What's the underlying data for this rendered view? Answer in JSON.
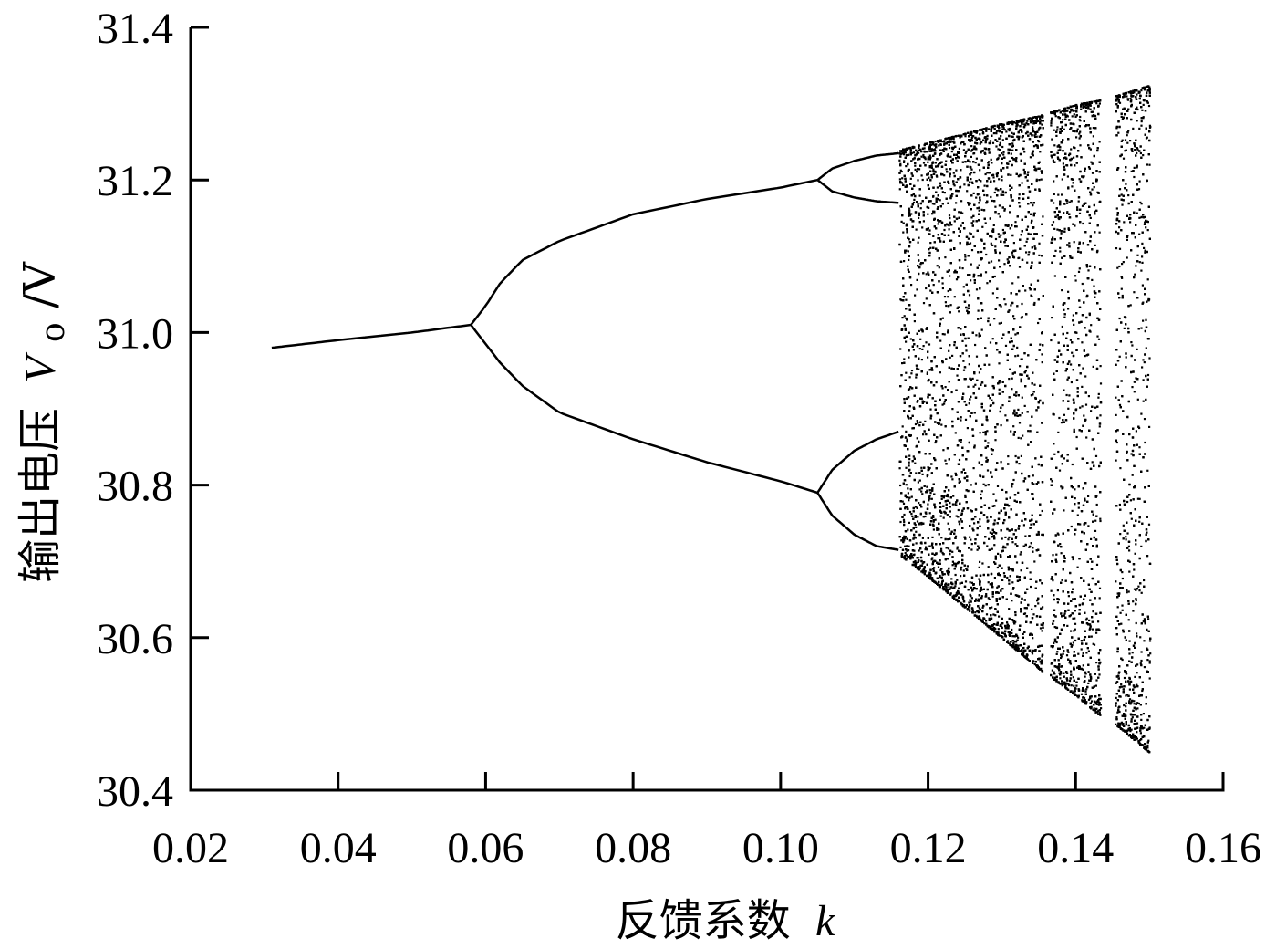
{
  "chart_data": {
    "type": "scatter",
    "title": "",
    "xlabel": "反馈系数",
    "xlabel_symbol": "k",
    "ylabel": "输出电压",
    "ylabel_symbol": "V",
    "ylabel_subscript": "o",
    "ylabel_unit": "/V",
    "xlim": [
      0.02,
      0.16
    ],
    "ylim": [
      30.4,
      31.4
    ],
    "x_ticks": [
      0.02,
      0.04,
      0.06,
      0.08,
      0.1,
      0.12,
      0.14,
      0.16
    ],
    "x_tick_labels": [
      "0.02",
      "0.04",
      "0.06",
      "0.08",
      "0.10",
      "0.12",
      "0.14",
      "0.16"
    ],
    "y_ticks": [
      30.4,
      30.6,
      30.8,
      31.0,
      31.2,
      31.4
    ],
    "y_tick_labels": [
      "30.4",
      "30.6",
      "30.8",
      "31.0",
      "31.2",
      "31.4"
    ],
    "grid": false,
    "legend": "none",
    "marker_color": "#000000",
    "series": [
      {
        "branches": [
          {
            "x": [
              0.031,
              0.04,
              0.05,
              0.058
            ],
            "y": [
              30.98,
              30.99,
              31.0,
              31.01
            ]
          },
          {
            "x": [
              0.058,
              0.06,
              0.062,
              0.065,
              0.07,
              0.08,
              0.09,
              0.1,
              0.105
            ],
            "y": [
              31.01,
              31.035,
              31.065,
              31.095,
              31.12,
              31.155,
              31.175,
              31.19,
              31.2
            ]
          },
          {
            "x": [
              0.058,
              0.06,
              0.062,
              0.065,
              0.07,
              0.08,
              0.09,
              0.1,
              0.105
            ],
            "y": [
              31.01,
              30.985,
              30.96,
              30.93,
              30.895,
              30.86,
              30.83,
              30.805,
              30.79
            ]
          },
          {
            "x": [
              0.105,
              0.107,
              0.11,
              0.113,
              0.116
            ],
            "y": [
              31.2,
              31.215,
              31.225,
              31.232,
              31.235
            ]
          },
          {
            "x": [
              0.105,
              0.107,
              0.11,
              0.113,
              0.116
            ],
            "y": [
              31.2,
              31.185,
              31.177,
              31.172,
              31.17
            ]
          },
          {
            "x": [
              0.105,
              0.107,
              0.11,
              0.113,
              0.116
            ],
            "y": [
              30.79,
              30.82,
              30.845,
              30.86,
              30.87
            ]
          },
          {
            "x": [
              0.105,
              0.107,
              0.11,
              0.113,
              0.116
            ],
            "y": [
              30.79,
              30.76,
              30.735,
              30.72,
              30.715
            ]
          }
        ]
      }
    ],
    "chaos_envelope": {
      "x": [
        0.116,
        0.12,
        0.125,
        0.13,
        0.135,
        0.14,
        0.143,
        0.145,
        0.15
      ],
      "upper": [
        31.24,
        31.25,
        31.262,
        31.275,
        31.285,
        31.3,
        31.305,
        31.31,
        31.325
      ],
      "lower": [
        30.71,
        30.68,
        30.64,
        30.6,
        30.56,
        30.525,
        30.5,
        30.49,
        30.45
      ]
    },
    "periodic_windows": [
      {
        "x": [
          0.1355,
          0.1365
        ]
      },
      {
        "x": [
          0.1433,
          0.1453
        ]
      }
    ]
  }
}
